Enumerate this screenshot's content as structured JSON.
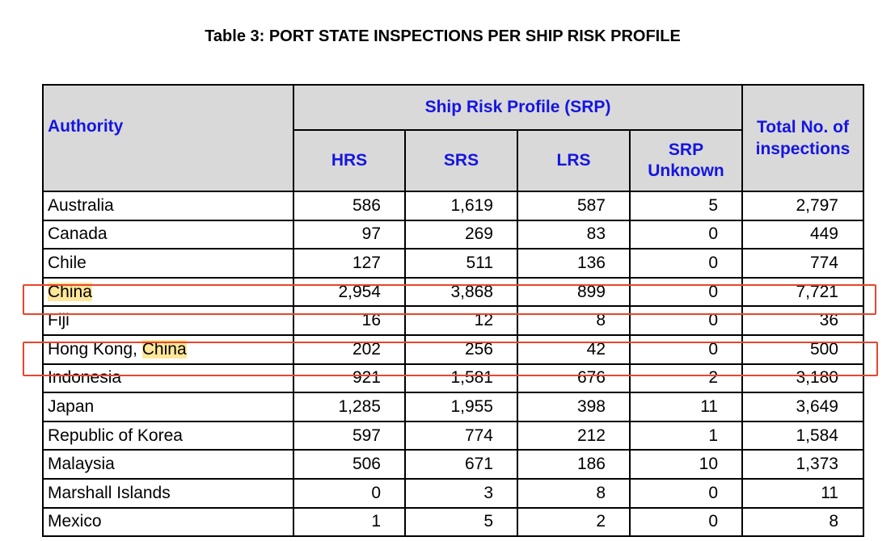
{
  "title": "Table 3: PORT STATE INSPECTIONS PER SHIP RISK PROFILE",
  "header": {
    "authority": "Authority",
    "srp_group": "Ship Risk Profile (SRP)",
    "hrs": "HRS",
    "srs": "SRS",
    "lrs": "LRS",
    "srp_unknown": "SRP Unknown",
    "total": "Total No. of inspections"
  },
  "highlight_term": "China",
  "rows": [
    {
      "prefix": "Australia",
      "term": "",
      "hrs": "586",
      "srs": "1,619",
      "lrs": "587",
      "unknown": "5",
      "total": "2,797"
    },
    {
      "prefix": "Canada",
      "term": "",
      "hrs": "97",
      "srs": "269",
      "lrs": "83",
      "unknown": "0",
      "total": "449"
    },
    {
      "prefix": "Chile",
      "term": "",
      "hrs": "127",
      "srs": "511",
      "lrs": "136",
      "unknown": "0",
      "total": "774"
    },
    {
      "prefix": "",
      "term": "China",
      "hrs": "2,954",
      "srs": "3,868",
      "lrs": "899",
      "unknown": "0",
      "total": "7,721"
    },
    {
      "prefix": "Fiji",
      "term": "",
      "hrs": "16",
      "srs": "12",
      "lrs": "8",
      "unknown": "0",
      "total": "36"
    },
    {
      "prefix": "Hong Kong, ",
      "term": "China",
      "hrs": "202",
      "srs": "256",
      "lrs": "42",
      "unknown": "0",
      "total": "500"
    },
    {
      "prefix": "Indonesia",
      "term": "",
      "hrs": "921",
      "srs": "1,581",
      "lrs": "676",
      "unknown": "2",
      "total": "3,180"
    },
    {
      "prefix": "Japan",
      "term": "",
      "hrs": "1,285",
      "srs": "1,955",
      "lrs": "398",
      "unknown": "11",
      "total": "3,649"
    },
    {
      "prefix": "Republic of Korea",
      "term": "",
      "hrs": "597",
      "srs": "774",
      "lrs": "212",
      "unknown": "1",
      "total": "1,584"
    },
    {
      "prefix": "Malaysia",
      "term": "",
      "hrs": "506",
      "srs": "671",
      "lrs": "186",
      "unknown": "10",
      "total": "1,373"
    },
    {
      "prefix": "Marshall Islands",
      "term": "",
      "hrs": "0",
      "srs": "3",
      "lrs": "8",
      "unknown": "0",
      "total": "11"
    },
    {
      "prefix": "Mexico",
      "term": "",
      "hrs": "1",
      "srs": "5",
      "lrs": "2",
      "unknown": "0",
      "total": "8"
    }
  ],
  "colors": {
    "header_text": "#1515e0",
    "header_bg": "#d9d9d9",
    "highlight": "#ffe79a",
    "annotation_box": "#e8452c"
  }
}
